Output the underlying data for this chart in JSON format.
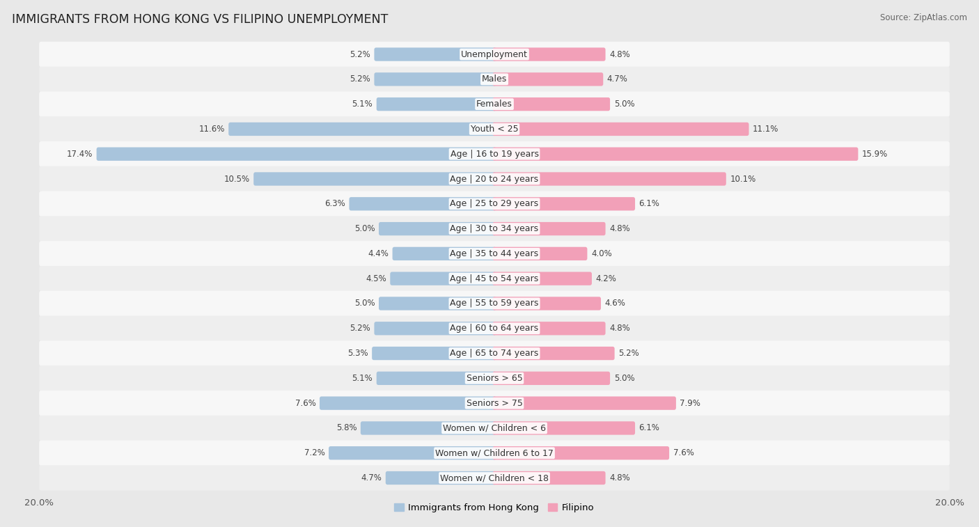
{
  "title": "IMMIGRANTS FROM HONG KONG VS FILIPINO UNEMPLOYMENT",
  "source": "Source: ZipAtlas.com",
  "categories": [
    "Unemployment",
    "Males",
    "Females",
    "Youth < 25",
    "Age | 16 to 19 years",
    "Age | 20 to 24 years",
    "Age | 25 to 29 years",
    "Age | 30 to 34 years",
    "Age | 35 to 44 years",
    "Age | 45 to 54 years",
    "Age | 55 to 59 years",
    "Age | 60 to 64 years",
    "Age | 65 to 74 years",
    "Seniors > 65",
    "Seniors > 75",
    "Women w/ Children < 6",
    "Women w/ Children 6 to 17",
    "Women w/ Children < 18"
  ],
  "hk_values": [
    5.2,
    5.2,
    5.1,
    11.6,
    17.4,
    10.5,
    6.3,
    5.0,
    4.4,
    4.5,
    5.0,
    5.2,
    5.3,
    5.1,
    7.6,
    5.8,
    7.2,
    4.7
  ],
  "fil_values": [
    4.8,
    4.7,
    5.0,
    11.1,
    15.9,
    10.1,
    6.1,
    4.8,
    4.0,
    4.2,
    4.6,
    4.8,
    5.2,
    5.0,
    7.9,
    6.1,
    7.6,
    4.8
  ],
  "hk_color": "#a8c4dc",
  "fil_color": "#f2a0b8",
  "bg_color": "#e8e8e8",
  "row_light": "#f7f7f7",
  "row_dark": "#eeeeee",
  "axis_limit": 20.0,
  "label_fontsize": 9.0,
  "title_fontsize": 12.5,
  "value_fontsize": 8.5,
  "source_fontsize": 8.5
}
